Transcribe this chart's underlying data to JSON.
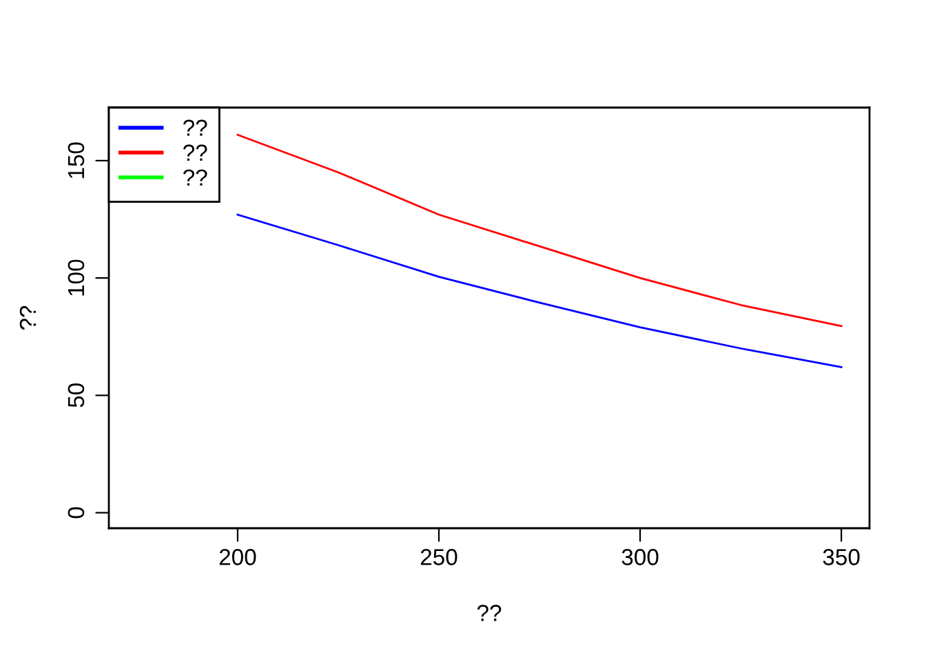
{
  "chart_data": {
    "type": "line",
    "xlabel": "??",
    "ylabel": "??",
    "x": [
      200,
      225,
      250,
      275,
      300,
      325,
      350
    ],
    "series": [
      {
        "name": "??",
        "color": "#0000ff",
        "values": [
          127,
          114,
          100.5,
          89.5,
          79,
          70,
          62
        ]
      },
      {
        "name": "??",
        "color": "#ff0000",
        "values": [
          161,
          145,
          127,
          113.5,
          100,
          88.5,
          79.5
        ]
      },
      {
        "name": "??",
        "color": "#00ff00",
        "values": [
          null,
          null,
          null,
          null,
          null,
          null,
          null
        ]
      }
    ],
    "xlim": [
      168,
      357
    ],
    "ylim": [
      -6.6,
      172.6
    ],
    "xticks": [
      200,
      250,
      300,
      350
    ],
    "yticks": [
      0,
      50,
      100,
      150
    ],
    "grid": false,
    "legend": "top left",
    "marker": "none",
    "line_style": "solid"
  }
}
